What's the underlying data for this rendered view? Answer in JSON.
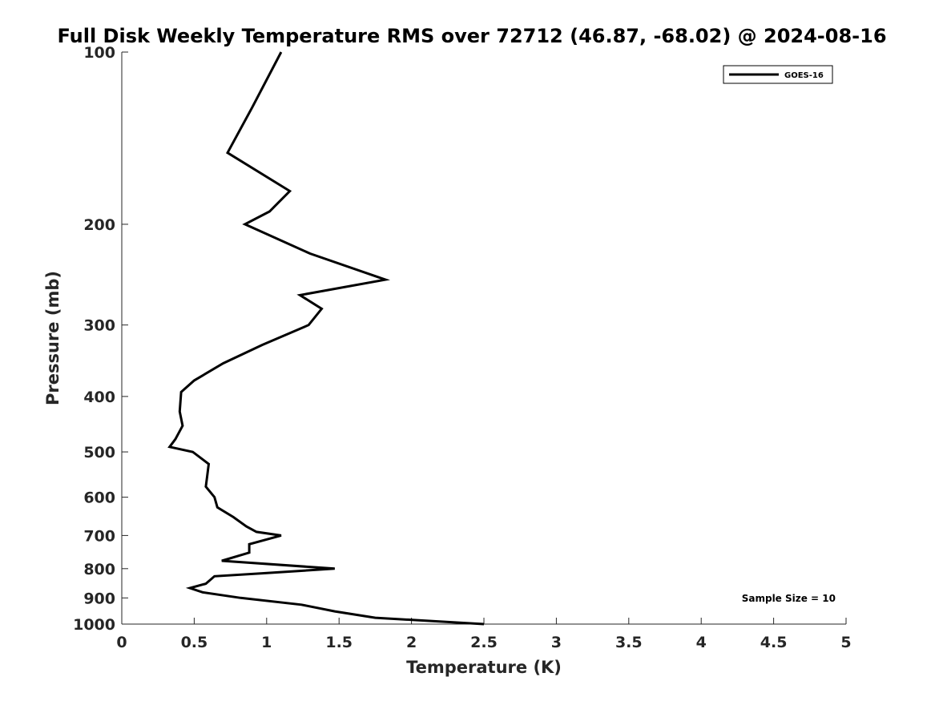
{
  "chart_data": {
    "type": "line",
    "title": "Full Disk Weekly Temperature RMS over 72712 (46.87, -68.02) @ 2024-08-16",
    "xlabel": "Temperature (K)",
    "ylabel": "Pressure (mb)",
    "xlim": [
      0,
      5
    ],
    "ylim": [
      100,
      1000
    ],
    "y_scale": "log",
    "y_reversed": true,
    "x_ticks": [
      0,
      0.5,
      1,
      1.5,
      2,
      2.5,
      3,
      3.5,
      4,
      4.5,
      5
    ],
    "x_tick_labels": [
      "0",
      "0.5",
      "1",
      "1.5",
      "2",
      "2.5",
      "3",
      "3.5",
      "4",
      "4.5",
      "5"
    ],
    "y_ticks": [
      100,
      200,
      300,
      400,
      500,
      600,
      700,
      800,
      900,
      1000
    ],
    "y_tick_labels": [
      "100",
      "200",
      "300",
      "400",
      "500",
      "600",
      "700",
      "800",
      "900",
      "1000"
    ],
    "grid": false,
    "legend": {
      "placement": "top-right",
      "entries": [
        "GOES-16"
      ]
    },
    "annotation": "Sample Size = 10",
    "series": [
      {
        "name": "GOES-16",
        "color": "#000000",
        "points": [
          [
            1.1,
            100
          ],
          [
            0.9,
            125
          ],
          [
            0.73,
            150
          ],
          [
            1.16,
            175
          ],
          [
            1.02,
            190
          ],
          [
            0.85,
            200
          ],
          [
            1.3,
            225
          ],
          [
            1.82,
            250
          ],
          [
            1.23,
            266
          ],
          [
            1.38,
            281
          ],
          [
            1.29,
            300
          ],
          [
            0.97,
            325
          ],
          [
            0.7,
            350
          ],
          [
            0.5,
            375
          ],
          [
            0.41,
            393
          ],
          [
            0.4,
            425
          ],
          [
            0.42,
            450
          ],
          [
            0.37,
            475
          ],
          [
            0.33,
            490
          ],
          [
            0.49,
            500
          ],
          [
            0.6,
            525
          ],
          [
            0.59,
            550
          ],
          [
            0.58,
            575
          ],
          [
            0.64,
            600
          ],
          [
            0.66,
            625
          ],
          [
            0.77,
            650
          ],
          [
            0.86,
            675
          ],
          [
            0.93,
            690
          ],
          [
            1.1,
            700
          ],
          [
            0.88,
            725
          ],
          [
            0.88,
            750
          ],
          [
            0.69,
            775
          ],
          [
            1.47,
            800
          ],
          [
            0.97,
            815
          ],
          [
            0.64,
            825
          ],
          [
            0.58,
            850
          ],
          [
            0.47,
            865
          ],
          [
            0.56,
            880
          ],
          [
            0.82,
            900
          ],
          [
            1.24,
            925
          ],
          [
            1.47,
            950
          ],
          [
            1.75,
            975
          ],
          [
            2.5,
            1000
          ]
        ]
      }
    ]
  }
}
